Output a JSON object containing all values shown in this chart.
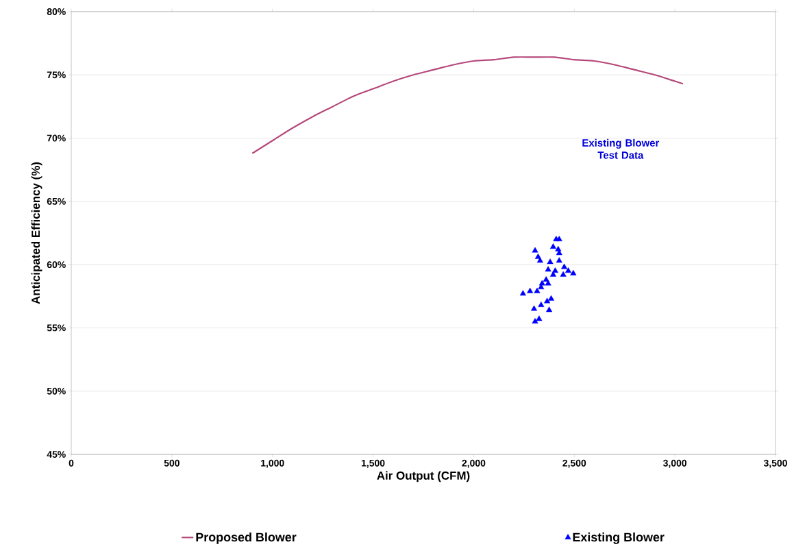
{
  "chart_data": {
    "type": "line",
    "xlabel": "Air Output (CFM)",
    "ylabel": "Anticipated Efficiency (%)",
    "xlim": [
      0,
      3500
    ],
    "ylim": [
      45,
      80
    ],
    "xticks": [
      0,
      {
        "value": 500,
        "label": "500"
      },
      {
        "value": 1000,
        "label": "1,000"
      },
      {
        "value": 1500,
        "label": "1,500"
      },
      {
        "value": 2000,
        "label": "2,000"
      },
      {
        "value": 2500,
        "label": "2,500"
      },
      {
        "value": 3000,
        "label": "3,000"
      },
      {
        "value": 3500,
        "label": "3,500"
      }
    ],
    "yticks": [
      {
        "value": 45,
        "label": "45%"
      },
      {
        "value": 50,
        "label": "50%"
      },
      {
        "value": 55,
        "label": "55%"
      },
      {
        "value": 60,
        "label": "60%"
      },
      {
        "value": 65,
        "label": "65%"
      },
      {
        "value": 70,
        "label": "70%"
      },
      {
        "value": 75,
        "label": "75%"
      },
      {
        "value": 80,
        "label": "80%"
      }
    ],
    "grid": "y",
    "legend": "bottom",
    "annotations": [
      "Existing Blower Test Data"
    ],
    "series": [
      {
        "name": "Proposed Blower",
        "color": "#b5487a",
        "marker": "none",
        "line_style": "solid",
        "x": [
          900,
          1000,
          1100,
          1200,
          1300,
          1400,
          1500,
          1600,
          1700,
          1800,
          1900,
          2000,
          2100,
          2200,
          2300,
          2400,
          2500,
          2600,
          2700,
          2800,
          2900,
          3000,
          3040
        ],
        "values": [
          68.8,
          69.8,
          70.8,
          71.7,
          72.5,
          73.3,
          73.9,
          74.5,
          75.0,
          75.4,
          75.8,
          76.1,
          76.2,
          76.4,
          76.4,
          76.4,
          76.2,
          76.1,
          75.8,
          75.4,
          75.0,
          74.5,
          74.3
        ]
      },
      {
        "name": "Existing Blower",
        "type": "scatter",
        "color": "#0000ff",
        "marker": "triangle",
        "x": [
          2305,
          2320,
          2330,
          2410,
          2425,
          2395,
          2420,
          2425,
          2380,
          2425,
          2370,
          2405,
          2450,
          2470,
          2495,
          2445,
          2395,
          2360,
          2340,
          2370,
          2335,
          2245,
          2280,
          2315,
          2385,
          2365,
          2335,
          2300,
          2375,
          2325,
          2305
        ],
        "values": [
          61.1,
          60.6,
          60.3,
          62.0,
          62.0,
          61.4,
          61.2,
          60.9,
          60.2,
          60.3,
          59.6,
          59.5,
          59.8,
          59.5,
          59.3,
          59.2,
          59.2,
          58.8,
          58.5,
          58.5,
          58.2,
          57.7,
          57.9,
          57.9,
          57.3,
          57.1,
          56.8,
          56.5,
          56.4,
          55.7,
          55.5
        ]
      }
    ]
  }
}
